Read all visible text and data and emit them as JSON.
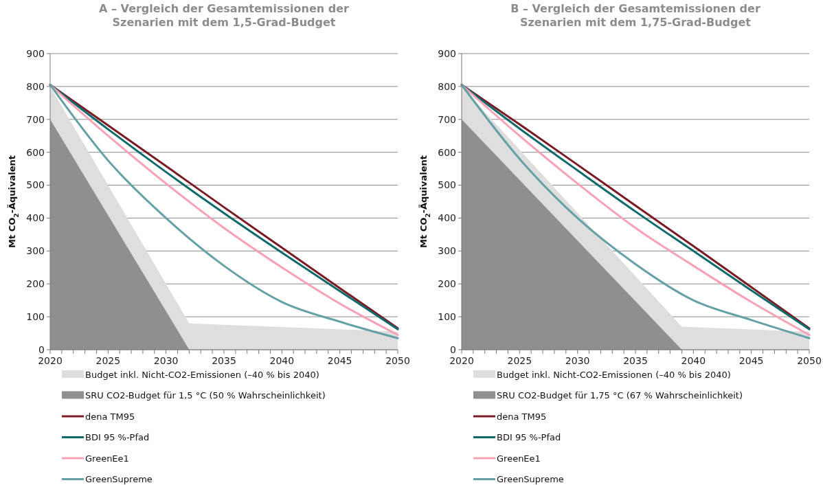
{
  "chart_data": [
    {
      "type": "line",
      "title": "A – Vergleich der Gesamtemissionen der Szenarien mit dem 1,5-Grad-Budget",
      "ylabel": "Mt CO$_{2}$-Äquivalent",
      "xlim": [
        2020,
        2050
      ],
      "ylim": [
        0,
        900
      ],
      "xticks": [
        2020,
        {
          "value": 2021,
          "label": null
        },
        {
          "value": 2022,
          "label": null
        },
        {
          "value": 2023,
          "label": null
        },
        {
          "value": 2024,
          "label": null
        },
        2025,
        {
          "value": 2026,
          "label": null
        },
        {
          "value": 2027,
          "label": null
        },
        {
          "value": 2028,
          "label": null
        },
        {
          "value": 2029,
          "label": null
        },
        2030,
        {
          "value": 2031,
          "label": null
        },
        {
          "value": 2032,
          "label": null
        },
        {
          "value": 2033,
          "label": null
        },
        {
          "value": 2034,
          "label": null
        },
        2035,
        {
          "value": 2036,
          "label": null
        },
        {
          "value": 2037,
          "label": null
        },
        {
          "value": 2038,
          "label": null
        },
        {
          "value": 2039,
          "label": null
        },
        2040,
        {
          "value": 2041,
          "label": null
        },
        {
          "value": 2042,
          "label": null
        },
        {
          "value": 2043,
          "label": null
        },
        {
          "value": 2044,
          "label": null
        },
        2045,
        {
          "value": 2046,
          "label": null
        },
        {
          "value": 2047,
          "label": null
        },
        {
          "value": 2048,
          "label": null
        },
        {
          "value": 2049,
          "label": null
        },
        2050
      ],
      "yticks": [
        0,
        100,
        200,
        300,
        400,
        500,
        600,
        700,
        800,
        900
      ],
      "grid": "y",
      "legend": "bottom",
      "series": [
        {
          "type": "area",
          "name": "Budget inkl. Nicht-CO2-Emissionen (–40 % bis 2040)",
          "color": "#dedede",
          "x": [
            2020,
            2032,
            2050
          ],
          "values": [
            800,
            80,
            55
          ]
        },
        {
          "type": "area",
          "name": "SRU CO2-Budget für 1,5 °C (50 % Wahrscheinlichkeit)",
          "color": "#8f8f8f",
          "x": [
            2020,
            2032
          ],
          "values": [
            700,
            0
          ]
        },
        {
          "name": "dena TM95",
          "color": "#7a1a24",
          "x": [
            2020,
            2025,
            2030,
            2035,
            2040,
            2045,
            2050
          ],
          "values": [
            805,
            682,
            558,
            433,
            310,
            187,
            65
          ]
        },
        {
          "name": "BDI 95 %-Pfad",
          "color": "#0e6a6a",
          "x": [
            2020,
            2025,
            2030,
            2035,
            2040,
            2045,
            2050
          ],
          "values": [
            805,
            670,
            540,
            415,
            295,
            178,
            62
          ]
        },
        {
          "name": "GreenEe1",
          "color": "#f7a1b4",
          "x": [
            2020,
            2025,
            2030,
            2035,
            2040,
            2045,
            2050
          ],
          "values": [
            805,
            650,
            505,
            370,
            250,
            140,
            45
          ]
        },
        {
          "name": "GreenSupreme",
          "color": "#64a0a4",
          "x": [
            2020,
            2025,
            2030,
            2035,
            2040,
            2045,
            2050
          ],
          "values": [
            805,
            575,
            400,
            255,
            145,
            85,
            35
          ]
        }
      ]
    },
    {
      "type": "line",
      "title": "B – Vergleich der Gesamtemissionen der Szenarien mit dem 1,75-Grad-Budget",
      "ylabel": "Mt CO$_{2}$-Äquivalent",
      "xlim": [
        2020,
        2050
      ],
      "ylim": [
        0,
        900
      ],
      "xticks": [
        2020,
        {
          "value": 2021,
          "label": null
        },
        {
          "value": 2022,
          "label": null
        },
        {
          "value": 2023,
          "label": null
        },
        {
          "value": 2024,
          "label": null
        },
        2025,
        {
          "value": 2026,
          "label": null
        },
        {
          "value": 2027,
          "label": null
        },
        {
          "value": 2028,
          "label": null
        },
        {
          "value": 2029,
          "label": null
        },
        2030,
        {
          "value": 2031,
          "label": null
        },
        {
          "value": 2032,
          "label": null
        },
        {
          "value": 2033,
          "label": null
        },
        {
          "value": 2034,
          "label": null
        },
        2035,
        {
          "value": 2036,
          "label": null
        },
        {
          "value": 2037,
          "label": null
        },
        {
          "value": 2038,
          "label": null
        },
        {
          "value": 2039,
          "label": null
        },
        2040,
        {
          "value": 2041,
          "label": null
        },
        {
          "value": 2042,
          "label": null
        },
        {
          "value": 2043,
          "label": null
        },
        {
          "value": 2044,
          "label": null
        },
        2045,
        {
          "value": 2046,
          "label": null
        },
        {
          "value": 2047,
          "label": null
        },
        {
          "value": 2048,
          "label": null
        },
        {
          "value": 2049,
          "label": null
        },
        2050
      ],
      "yticks": [
        0,
        100,
        200,
        300,
        400,
        500,
        600,
        700,
        800,
        900
      ],
      "grid": "y",
      "legend": "bottom",
      "series": [
        {
          "type": "area",
          "name": "Budget inkl. Nicht-CO2-Emissionen (–40 % bis 2040)",
          "color": "#dedede",
          "x": [
            2020,
            2039,
            2050
          ],
          "values": [
            800,
            70,
            55
          ]
        },
        {
          "type": "area",
          "name": "SRU CO2-Budget für 1,75 °C (67 % Wahrscheinlichkeit)",
          "color": "#8f8f8f",
          "x": [
            2020,
            2039
          ],
          "values": [
            700,
            0
          ]
        },
        {
          "name": "dena TM95",
          "color": "#7a1a24",
          "x": [
            2020,
            2025,
            2030,
            2035,
            2040,
            2045,
            2050
          ],
          "values": [
            805,
            685,
            562,
            438,
            315,
            190,
            65
          ]
        },
        {
          "name": "BDI 95 %-Pfad",
          "color": "#0e6a6a",
          "x": [
            2020,
            2025,
            2030,
            2035,
            2040,
            2045,
            2050
          ],
          "values": [
            805,
            672,
            545,
            420,
            300,
            180,
            62
          ]
        },
        {
          "name": "GreenEe1",
          "color": "#f7a1b4",
          "x": [
            2020,
            2025,
            2030,
            2035,
            2040,
            2045,
            2050
          ],
          "values": [
            805,
            650,
            505,
            370,
            255,
            145,
            45
          ]
        },
        {
          "name": "GreenSupreme",
          "color": "#64a0a4",
          "x": [
            2020,
            2025,
            2030,
            2035,
            2040,
            2045,
            2050
          ],
          "values": [
            805,
            580,
            400,
            260,
            150,
            90,
            35
          ]
        }
      ]
    }
  ]
}
